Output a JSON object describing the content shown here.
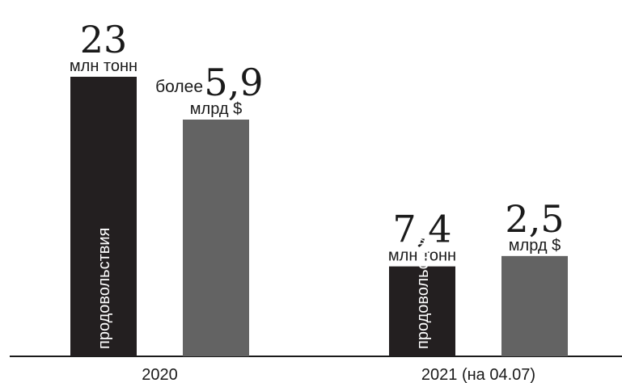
{
  "colors": {
    "food_bar": "#231f20",
    "money_bar": "#636363",
    "axis": "#1a1a1a"
  },
  "chart_data": {
    "type": "bar",
    "categories": [
      "2020",
      "2021 (на 04.07)"
    ],
    "series": [
      {
        "values": [
          23,
          7.4
        ],
        "value_labels": [
          "23",
          "7,4"
        ],
        "unit": "млн тонн",
        "bar_text": "продовольствия",
        "color": "#231f20"
      },
      {
        "values": [
          5.9,
          2.5
        ],
        "value_labels": [
          "5,9",
          "2,5"
        ],
        "unit": "млрд $",
        "prefixes": [
          "более",
          ""
        ],
        "color": "#636363"
      }
    ],
    "grid": false,
    "legend": "none"
  }
}
